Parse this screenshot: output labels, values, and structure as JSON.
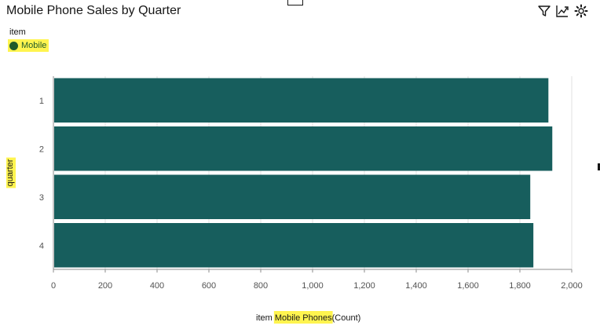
{
  "title": "Mobile Phone Sales by Quarter",
  "toolbar": {
    "icons": [
      "filter-icon",
      "trend-icon",
      "settings-icon"
    ]
  },
  "legend": {
    "title": "item",
    "items": [
      {
        "label": "Mobile",
        "color": "#1f5b2a"
      }
    ]
  },
  "colors": {
    "bar": "#175e5d",
    "axis": "#8d8d8d",
    "grid": "#e0e0e0",
    "highlight": "#fff44f"
  },
  "chart_data": {
    "type": "bar",
    "orientation": "horizontal",
    "categories": [
      "1",
      "2",
      "3",
      "4"
    ],
    "values": [
      1910,
      1925,
      1840,
      1852
    ],
    "xlim": [
      0,
      2000
    ],
    "xticks": [
      "0",
      "200",
      "400",
      "600",
      "800",
      "1,000",
      "1,200",
      "1,400",
      "1,600",
      "1,800",
      "2,000"
    ],
    "xlabel_prefix": "item ",
    "xlabel_highlight": "Mobile Phones",
    "xlabel_suffix": "(Count)",
    "ylabel": "quarter",
    "grid": true
  }
}
